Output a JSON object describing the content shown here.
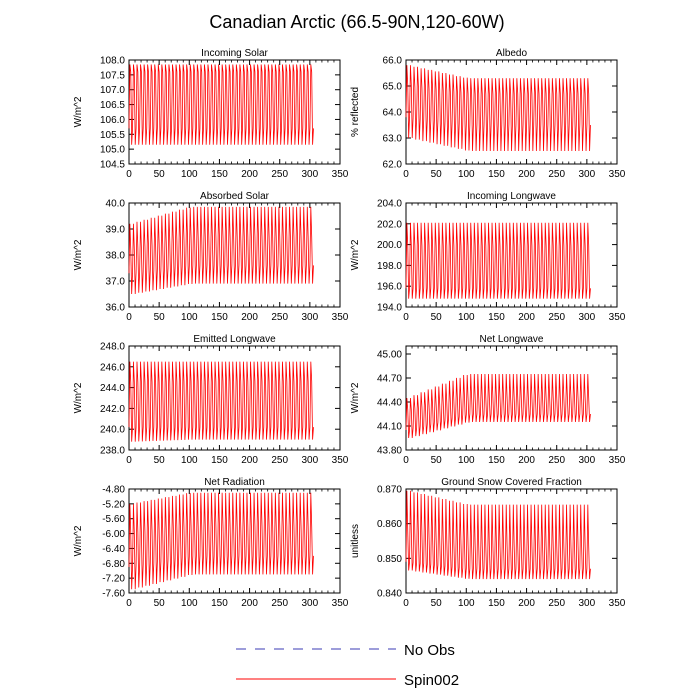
{
  "figure": {
    "title": "Canadian Arctic (66.5-90N,120-60W)",
    "legend": [
      {
        "label": "No Obs",
        "style": "dashed",
        "color": "#3b3bb5"
      },
      {
        "label": "Spin002",
        "style": "solid",
        "color": "#ff0000"
      }
    ],
    "series_color": "#ff0000"
  },
  "chart_data": [
    {
      "type": "line",
      "title": "Incoming Solar",
      "xlabel": "",
      "ylabel": "W/m^2",
      "xlim": [
        0,
        350
      ],
      "xticks": [
        "0",
        "50",
        "100",
        "150",
        "200",
        "250",
        "300",
        "350"
      ],
      "ylim": [
        104.5,
        108.0
      ],
      "yticks": [
        "104.5",
        "105.0",
        "105.5",
        "106.0",
        "106.5",
        "107.0",
        "107.5",
        "108.0"
      ],
      "series": [
        {
          "name": "Spin002",
          "n_cycles": 26,
          "x_end": 306,
          "env_start": [
            105.15,
            107.85
          ],
          "env_end": [
            105.15,
            107.85
          ],
          "inner_start": [
            105.7,
            107.6
          ],
          "inner_end": [
            105.7,
            107.6
          ]
        }
      ]
    },
    {
      "type": "line",
      "title": "Albedo",
      "xlabel": "",
      "ylabel": "% reflected",
      "xlim": [
        0,
        350
      ],
      "xticks": [
        "0",
        "50",
        "100",
        "150",
        "200",
        "250",
        "300",
        "350"
      ],
      "ylim": [
        62.0,
        66.0
      ],
      "yticks": [
        "62.0",
        "63.0",
        "64.0",
        "65.0",
        "66.0"
      ],
      "series": [
        {
          "name": "Spin002",
          "n_cycles": 26,
          "x_end": 306,
          "env_start": [
            63.0,
            65.8
          ],
          "env_end": [
            62.5,
            65.3
          ],
          "inner_start": [
            63.8,
            65.0
          ],
          "inner_end": [
            63.5,
            64.7
          ]
        }
      ]
    },
    {
      "type": "line",
      "title": "Absorbed Solar",
      "xlabel": "",
      "ylabel": "W/m^2",
      "xlim": [
        0,
        350
      ],
      "xticks": [
        "0",
        "50",
        "100",
        "150",
        "200",
        "250",
        "300",
        "350"
      ],
      "ylim": [
        36.0,
        40.0
      ],
      "yticks": [
        "36.0",
        "37.0",
        "38.0",
        "39.0",
        "40.0"
      ],
      "series": [
        {
          "name": "Spin002",
          "n_cycles": 26,
          "x_end": 306,
          "env_start": [
            36.5,
            39.2
          ],
          "env_end": [
            36.9,
            39.85
          ],
          "inner_start": [
            37.3,
            38.2
          ],
          "inner_end": [
            37.6,
            38.7
          ]
        }
      ]
    },
    {
      "type": "line",
      "title": "Incoming Longwave",
      "xlabel": "",
      "ylabel": "W/m^2",
      "xlim": [
        0,
        350
      ],
      "xticks": [
        "0",
        "50",
        "100",
        "150",
        "200",
        "250",
        "300",
        "350"
      ],
      "ylim": [
        194.0,
        204.0
      ],
      "yticks": [
        "194.0",
        "196.0",
        "198.0",
        "200.0",
        "202.0",
        "204.0"
      ],
      "series": [
        {
          "name": "Spin002",
          "n_cycles": 26,
          "x_end": 306,
          "env_start": [
            194.8,
            202.1
          ],
          "env_end": [
            194.8,
            202.1
          ],
          "inner_start": [
            195.8,
            199.9
          ],
          "inner_end": [
            195.8,
            199.9
          ]
        }
      ]
    },
    {
      "type": "line",
      "title": "Emitted Longwave",
      "xlabel": "",
      "ylabel": "W/m^2",
      "xlim": [
        0,
        350
      ],
      "xticks": [
        "0",
        "50",
        "100",
        "150",
        "200",
        "250",
        "300",
        "350"
      ],
      "ylim": [
        238.0,
        248.0
      ],
      "yticks": [
        "238.0",
        "240.0",
        "242.0",
        "244.0",
        "246.0",
        "248.0"
      ],
      "series": [
        {
          "name": "Spin002",
          "n_cycles": 26,
          "x_end": 306,
          "env_start": [
            238.8,
            246.5
          ],
          "env_end": [
            239.0,
            246.5
          ],
          "inner_start": [
            240.2,
            244.5
          ],
          "inner_end": [
            240.2,
            244.6
          ]
        }
      ]
    },
    {
      "type": "line",
      "title": "Net Longwave",
      "xlabel": "",
      "ylabel": "W/m^2",
      "xlim": [
        0,
        350
      ],
      "xticks": [
        "0",
        "50",
        "100",
        "150",
        "200",
        "250",
        "300",
        "350"
      ],
      "ylim": [
        43.8,
        45.1
      ],
      "yticks": [
        "43.80",
        "44.10",
        "44.40",
        "44.70",
        "45.00"
      ],
      "series": [
        {
          "name": "Spin002",
          "n_cycles": 26,
          "x_end": 306,
          "env_start": [
            43.95,
            44.45
          ],
          "env_end": [
            44.15,
            44.75
          ],
          "inner_start": [
            44.05,
            44.3
          ],
          "inner_end": [
            44.25,
            44.45
          ]
        }
      ]
    },
    {
      "type": "line",
      "title": "Net Radiation",
      "xlabel": "",
      "ylabel": "W/m^2",
      "xlim": [
        0,
        350
      ],
      "xticks": [
        "0",
        "50",
        "100",
        "150",
        "200",
        "250",
        "300",
        "350"
      ],
      "ylim": [
        -7.6,
        -4.8
      ],
      "yticks": [
        "-7.60",
        "-7.20",
        "-6.80",
        "-6.40",
        "-6.00",
        "-5.60",
        "-5.20",
        "-4.80"
      ],
      "series": [
        {
          "name": "Spin002",
          "n_cycles": 26,
          "x_end": 306,
          "env_start": [
            -7.5,
            -5.2
          ],
          "env_end": [
            -7.1,
            -4.9
          ],
          "inner_start": [
            -6.9,
            -6.0
          ],
          "inner_end": [
            -6.6,
            -5.8
          ]
        }
      ]
    },
    {
      "type": "line",
      "title": "Ground Snow Covered Fraction",
      "xlabel": "",
      "ylabel": "unitless",
      "xlim": [
        0,
        350
      ],
      "xticks": [
        "0",
        "50",
        "100",
        "150",
        "200",
        "250",
        "300",
        "350"
      ],
      "ylim": [
        0.84,
        0.87
      ],
      "yticks": [
        "0.840",
        "0.850",
        "0.860",
        "0.870"
      ],
      "series": [
        {
          "name": "Spin002",
          "n_cycles": 26,
          "x_end": 306,
          "env_start": [
            0.8465,
            0.8695
          ],
          "env_end": [
            0.844,
            0.8655
          ],
          "inner_start": [
            0.849,
            0.8575
          ],
          "inner_end": [
            0.847,
            0.8535
          ]
        }
      ]
    }
  ]
}
